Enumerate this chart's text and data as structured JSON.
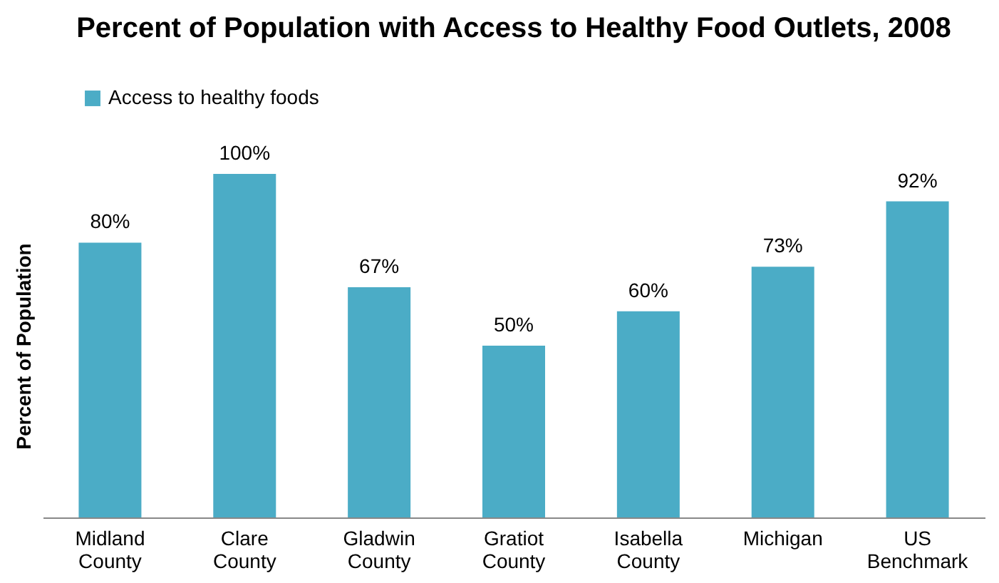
{
  "chart_data": {
    "type": "bar",
    "title": "Percent of Population with Access to Healthy Food Outlets, 2008",
    "ylabel": "Percent of Population",
    "categories": [
      "Midland County",
      "Clare County",
      "Gladwin County",
      "Gratiot County",
      "Isabella County",
      "Michigan",
      "US Benchmark"
    ],
    "series": [
      {
        "name": "Access to healthy foods",
        "color": "#4bacc6",
        "values": [
          80,
          100,
          67,
          50,
          60,
          73,
          92
        ],
        "value_labels": [
          "80%",
          "100%",
          "67%",
          "50%",
          "60%",
          "73%",
          "92%"
        ]
      }
    ],
    "tick_labels": "x",
    "legend": "top",
    "grid": false
  }
}
